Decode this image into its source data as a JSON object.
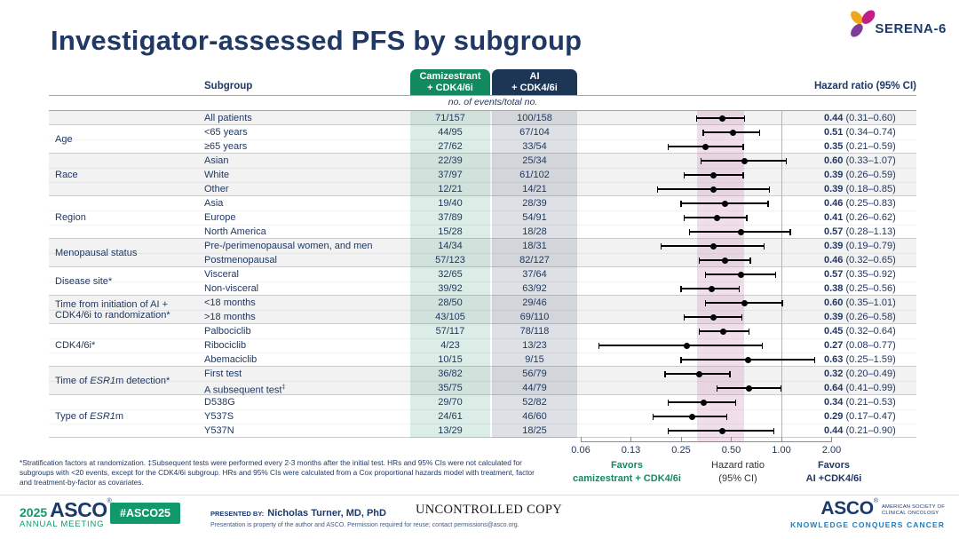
{
  "colors": {
    "navy": "#1f3864",
    "green": "#12895e",
    "arm1_bg": "#12895e",
    "arm2_bg": "#1e3655",
    "stripe": "#f2f2f2",
    "cami_tint": "rgba(18,137,94,0.15)",
    "ai_tint": "rgba(30,54,85,0.15)",
    "band": "rgba(202,138,184,0.28)",
    "ref_line": "#b3b3b3",
    "rule": "#a6a6a6",
    "marker": "#000000",
    "hashtag_bg": "#12996b",
    "asco_navy": "#1b3a6b",
    "asco_green": "#0f9a68",
    "tagline_blue": "#1f7dc0"
  },
  "slide": {
    "title": "Investigator-assessed PFS by subgroup",
    "logo_text": "SERENA-6"
  },
  "table": {
    "subgroup_header": "Subgroup",
    "events_note": "no. of events/total no.",
    "hr_header": "Hazard ratio (95% CI)",
    "arm1": {
      "line1": "Camizestrant",
      "line2": "+ CDK4/6i"
    },
    "arm2": {
      "line1": "AI",
      "line2": "+ CDK4/6i"
    },
    "groups": [
      {
        "label": "",
        "rows": [
          0
        ]
      },
      {
        "label": "Age",
        "rows": [
          1,
          2
        ]
      },
      {
        "label": "Race",
        "rows": [
          3,
          4,
          5
        ]
      },
      {
        "label": "Region",
        "rows": [
          6,
          7,
          8
        ]
      },
      {
        "label": "Menopausal status",
        "rows": [
          9,
          10
        ]
      },
      {
        "label": "Disease site*",
        "rows": [
          11,
          12
        ]
      },
      {
        "label": "Time from initiation of AI + CDK4/6i to randomization*",
        "parts": [
          {
            "t": "Time from initiation of AI +"
          },
          {
            "br": true
          },
          {
            "t": "CDK4/6i to randomization*"
          }
        ],
        "rows": [
          13,
          14
        ]
      },
      {
        "label": "CDK4/6i*",
        "rows": [
          15,
          16,
          17
        ]
      },
      {
        "label": "Time of ESR1m detection*",
        "parts": [
          {
            "t": "Time of "
          },
          {
            "t": "ESR1",
            "i": true
          },
          {
            "t": "m detection*"
          }
        ],
        "rows": [
          18,
          19
        ]
      },
      {
        "label": "Type of ESR1m",
        "parts": [
          {
            "t": "Type of "
          },
          {
            "t": "ESR1",
            "i": true
          },
          {
            "t": "m"
          }
        ],
        "rows": [
          20,
          21,
          22
        ]
      }
    ]
  },
  "plot": {
    "x_ticks": [
      {
        "v": 0.0625,
        "label": "0.06"
      },
      {
        "v": 0.125,
        "label": "0.13"
      },
      {
        "v": 0.25,
        "label": "0.25"
      },
      {
        "v": 0.5,
        "label": "0.50"
      },
      {
        "v": 1.0,
        "label": "1.00"
      },
      {
        "v": 2.0,
        "label": "2.00"
      }
    ],
    "reference_value": 1.0,
    "band": {
      "lo": 0.31,
      "hi": 0.6
    },
    "favors_left": {
      "line1": "Favors",
      "line2": "camizestrant + CDK4/6i"
    },
    "center_label": {
      "line1": "Hazard ratio",
      "line2": "(95% CI)"
    },
    "favors_right": {
      "line1": "Favors",
      "line2": "AI +CDK4/6i"
    }
  },
  "footnote": "*Stratification factors at randomization. ‡Subsequent tests were performed every 2-3 months after the initial test. HRs and 95% CIs were not calculated for subgroups with <20 events, except for the CDK4/6i subgroup. HRs and 95% CIs were calculated from a Cox proportional hazards model with treatment, factor and treatment-by-factor as covariates.",
  "footer": {
    "year": "2025",
    "meeting_name": "ASCO",
    "meeting_reg": "®",
    "meeting_sub": "ANNUAL MEETING",
    "hashtag": "#ASCO25",
    "presented_by_label": "PRESENTED BY:",
    "presenter": "Nicholas Turner, MD, PhD",
    "disclaimer": "Presentation is property of the author and ASCO. Permission required for reuse; contact permissions@asco.org.",
    "stamp": "UNCONTROLLED COPY",
    "asco_wordmark": "ASCO",
    "asco_reg": "®",
    "asco_sub1": "AMERICAN SOCIETY OF",
    "asco_sub2": "CLINICAL ONCOLOGY",
    "asco_tagline": "KNOWLEDGE CONQUERS CANCER"
  },
  "chart_data": {
    "type": "scatter",
    "variant": "forest-plot",
    "title": "Investigator-assessed PFS by subgroup",
    "xlabel": "Hazard ratio (95% CI)",
    "x_scale": "log",
    "x_ticks": [
      0.06,
      0.13,
      0.25,
      0.5,
      1.0,
      2.0
    ],
    "reference_line": 1.0,
    "shaded_band_ci": [
      0.31,
      0.6
    ],
    "series_labels": [
      "Camizestrant + CDK4/6i",
      "AI + CDK4/6i"
    ],
    "points": [
      {
        "group": "",
        "subgroup": "All patients",
        "cami_events": "71/157",
        "ai_events": "100/158",
        "hr": 0.44,
        "lo": 0.31,
        "hi": 0.6,
        "hr_label": "0.44",
        "ci_label": "(0.31–0.60)"
      },
      {
        "group": "Age",
        "subgroup": "<65 years",
        "cami_events": "44/95",
        "ai_events": "67/104",
        "hr": 0.51,
        "lo": 0.34,
        "hi": 0.74,
        "hr_label": "0.51",
        "ci_label": "(0.34–0.74)"
      },
      {
        "group": "Age",
        "subgroup": "≥65 years",
        "cami_events": "27/62",
        "ai_events": "33/54",
        "hr": 0.35,
        "lo": 0.21,
        "hi": 0.59,
        "hr_label": "0.35",
        "ci_label": "(0.21–0.59)"
      },
      {
        "group": "Race",
        "subgroup": "Asian",
        "cami_events": "22/39",
        "ai_events": "25/34",
        "hr": 0.6,
        "lo": 0.33,
        "hi": 1.07,
        "hr_label": "0.60",
        "ci_label": "(0.33–1.07)"
      },
      {
        "group": "Race",
        "subgroup": "White",
        "cami_events": "37/97",
        "ai_events": "61/102",
        "hr": 0.39,
        "lo": 0.26,
        "hi": 0.59,
        "hr_label": "0.39",
        "ci_label": "(0.26–0.59)"
      },
      {
        "group": "Race",
        "subgroup": "Other",
        "cami_events": "12/21",
        "ai_events": "14/21",
        "hr": 0.39,
        "lo": 0.18,
        "hi": 0.85,
        "hr_label": "0.39",
        "ci_label": "(0.18–0.85)"
      },
      {
        "group": "Region",
        "subgroup": "Asia",
        "cami_events": "19/40",
        "ai_events": "28/39",
        "hr": 0.46,
        "lo": 0.25,
        "hi": 0.83,
        "hr_label": "0.46",
        "ci_label": "(0.25–0.83)"
      },
      {
        "group": "Region",
        "subgroup": "Europe",
        "cami_events": "37/89",
        "ai_events": "54/91",
        "hr": 0.41,
        "lo": 0.26,
        "hi": 0.62,
        "hr_label": "0.41",
        "ci_label": "(0.26–0.62)"
      },
      {
        "group": "Region",
        "subgroup": "North America",
        "cami_events": "15/28",
        "ai_events": "18/28",
        "hr": 0.57,
        "lo": 0.28,
        "hi": 1.13,
        "hr_label": "0.57",
        "ci_label": "(0.28–1.13)"
      },
      {
        "group": "Menopausal status",
        "subgroup": "Pre-/perimenopausal women, and men",
        "cami_events": "14/34",
        "ai_events": "18/31",
        "hr": 0.39,
        "lo": 0.19,
        "hi": 0.79,
        "hr_label": "0.39",
        "ci_label": "(0.19–0.79)"
      },
      {
        "group": "Menopausal status",
        "subgroup": "Postmenopausal",
        "cami_events": "57/123",
        "ai_events": "82/127",
        "hr": 0.46,
        "lo": 0.32,
        "hi": 0.65,
        "hr_label": "0.46",
        "ci_label": "(0.32–0.65)"
      },
      {
        "group": "Disease site*",
        "subgroup": "Visceral",
        "cami_events": "32/65",
        "ai_events": "37/64",
        "hr": 0.57,
        "lo": 0.35,
        "hi": 0.92,
        "hr_label": "0.57",
        "ci_label": "(0.35–0.92)"
      },
      {
        "group": "Disease site*",
        "subgroup": "Non-visceral",
        "cami_events": "39/92",
        "ai_events": "63/92",
        "hr": 0.38,
        "lo": 0.25,
        "hi": 0.56,
        "hr_label": "0.38",
        "ci_label": "(0.25–0.56)"
      },
      {
        "group": "Time from initiation of AI + CDK4/6i to randomization*",
        "subgroup": "<18 months",
        "cami_events": "28/50",
        "ai_events": "29/46",
        "hr": 0.6,
        "lo": 0.35,
        "hi": 1.01,
        "hr_label": "0.60",
        "ci_label": "(0.35–1.01)"
      },
      {
        "group": "Time from initiation of AI + CDK4/6i to randomization*",
        "subgroup": ">18 months",
        "cami_events": "43/105",
        "ai_events": "69/110",
        "hr": 0.39,
        "lo": 0.26,
        "hi": 0.58,
        "hr_label": "0.39",
        "ci_label": "(0.26–0.58)"
      },
      {
        "group": "CDK4/6i*",
        "subgroup": "Palbociclib",
        "cami_events": "57/117",
        "ai_events": "78/118",
        "hr": 0.45,
        "lo": 0.32,
        "hi": 0.64,
        "hr_label": "0.45",
        "ci_label": "(0.32–0.64)"
      },
      {
        "group": "CDK4/6i*",
        "subgroup": "Ribociclib",
        "cami_events": "4/23",
        "ai_events": "13/23",
        "hr": 0.27,
        "lo": 0.08,
        "hi": 0.77,
        "hr_label": "0.27",
        "ci_label": "(0.08–0.77)"
      },
      {
        "group": "CDK4/6i*",
        "subgroup": "Abemaciclib",
        "cami_events": "10/15",
        "ai_events": "9/15",
        "hr": 0.63,
        "lo": 0.25,
        "hi": 1.59,
        "hr_label": "0.63",
        "ci_label": "(0.25–1.59)"
      },
      {
        "group": "Time of ESR1m detection*",
        "subgroup": "First test",
        "cami_events": "36/82",
        "ai_events": "56/79",
        "hr": 0.32,
        "lo": 0.2,
        "hi": 0.49,
        "hr_label": "0.32",
        "ci_label": "(0.20–0.49)"
      },
      {
        "group": "Time of ESR1m detection*",
        "subgroup": "A subsequent test‡",
        "sub_parts": [
          {
            "t": "A subsequent test"
          },
          {
            "t": "‡",
            "sup": true
          }
        ],
        "cami_events": "35/75",
        "ai_events": "44/79",
        "hr": 0.64,
        "lo": 0.41,
        "hi": 0.99,
        "hr_label": "0.64",
        "ci_label": "(0.41–0.99)"
      },
      {
        "group": "Type of ESR1m",
        "subgroup": "D538G",
        "cami_events": "29/70",
        "ai_events": "52/82",
        "hr": 0.34,
        "lo": 0.21,
        "hi": 0.53,
        "hr_label": "0.34",
        "ci_label": "(0.21–0.53)"
      },
      {
        "group": "Type of ESR1m",
        "subgroup": "Y537S",
        "cami_events": "24/61",
        "ai_events": "46/60",
        "hr": 0.29,
        "lo": 0.17,
        "hi": 0.47,
        "hr_label": "0.29",
        "ci_label": "(0.17–0.47)"
      },
      {
        "group": "Type of ESR1m",
        "subgroup": "Y537N",
        "cami_events": "13/29",
        "ai_events": "18/25",
        "hr": 0.44,
        "lo": 0.21,
        "hi": 0.9,
        "hr_label": "0.44",
        "ci_label": "(0.21–0.90)"
      }
    ]
  }
}
